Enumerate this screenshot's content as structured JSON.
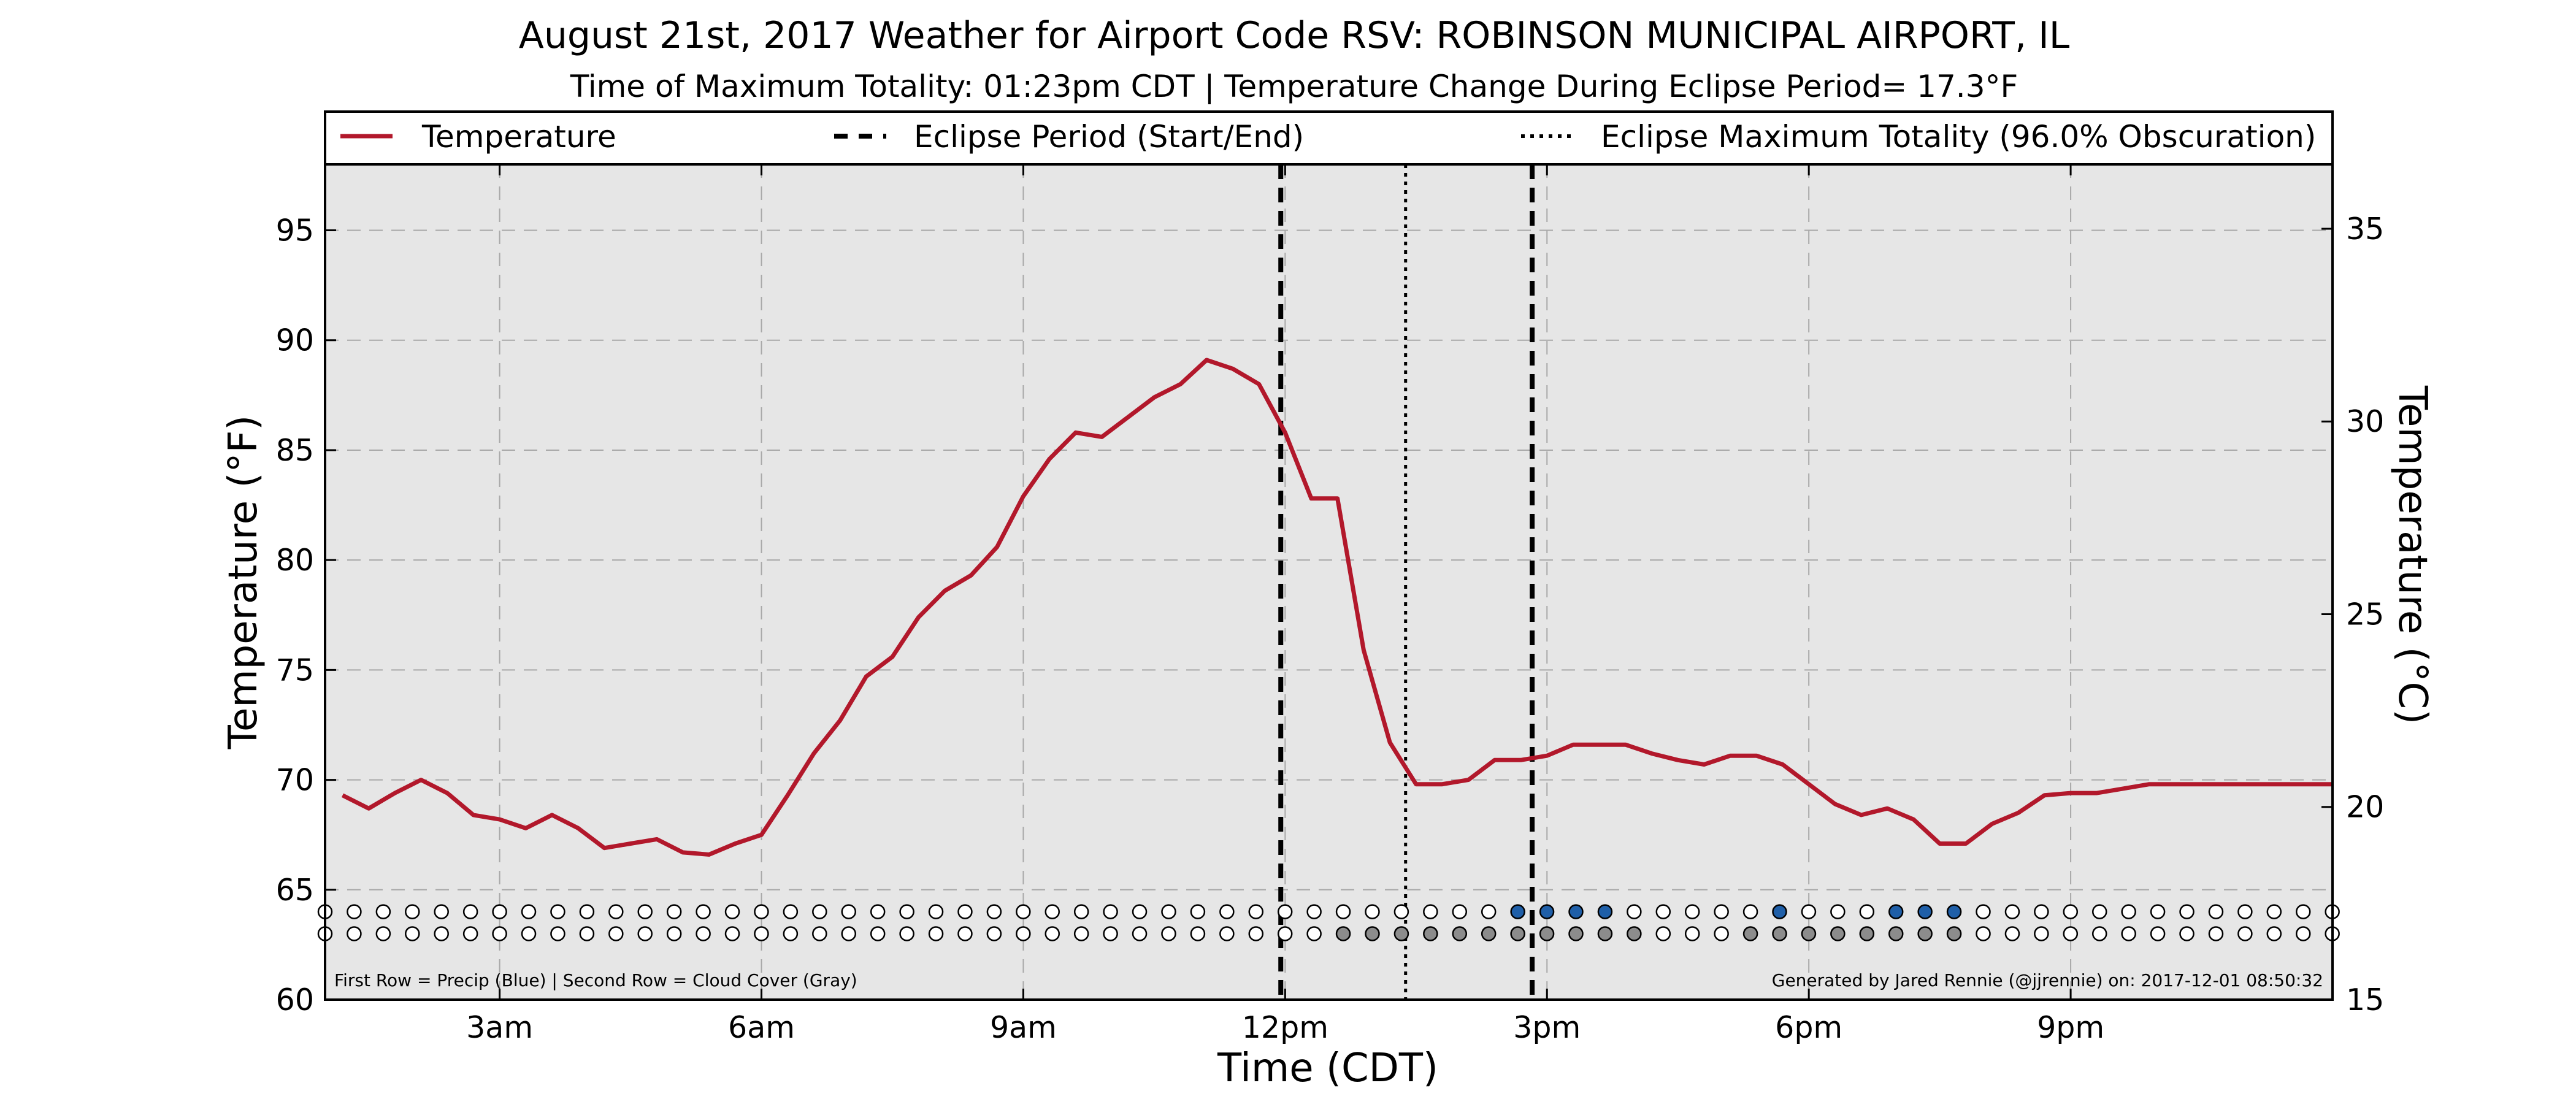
{
  "chart_data": {
    "type": "line",
    "title": "August 21st, 2017 Weather for Airport Code RSV: ROBINSON MUNICIPAL AIRPORT, IL",
    "subtitle": "Time of Maximum Totality: 01:23pm CDT | Temperature Change During Eclipse Period= 17.3°F",
    "xlabel": "Time (CDT)",
    "ylabel": "Temperature (°F)",
    "y2label": "Temperature (°C)",
    "xlim": [
      1.0,
      24.0
    ],
    "ylim": [
      60,
      98
    ],
    "y2lim": [
      15,
      36.67
    ],
    "x_ticks": [
      {
        "x": 3,
        "label": "3am"
      },
      {
        "x": 6,
        "label": "6am"
      },
      {
        "x": 9,
        "label": "9am"
      },
      {
        "x": 12,
        "label": "12pm"
      },
      {
        "x": 15,
        "label": "3pm"
      },
      {
        "x": 18,
        "label": "6pm"
      },
      {
        "x": 21,
        "label": "9pm"
      }
    ],
    "y_ticks": [
      60,
      65,
      70,
      75,
      80,
      85,
      90,
      95
    ],
    "y2_ticks": [
      15,
      20,
      25,
      30,
      35
    ],
    "grid": true,
    "legend": {
      "placement": "top",
      "entries": [
        {
          "label": "Temperature",
          "style": "solid"
        },
        {
          "label": "Eclipse Period (Start/End)",
          "style": "dashed"
        },
        {
          "label": "Eclipse Maximum Totality (96.0% Obscuration)",
          "style": "dotted"
        }
      ]
    },
    "series": [
      {
        "name": "Temperature",
        "color": "#b2182b",
        "x": [
          1.2,
          1.5,
          1.8,
          2.1,
          2.4,
          2.7,
          3.0,
          3.3,
          3.6,
          3.9,
          4.2,
          4.5,
          4.8,
          5.1,
          5.4,
          5.7,
          6.0,
          6.3,
          6.6,
          6.9,
          7.2,
          7.5,
          7.8,
          8.1,
          8.4,
          8.7,
          9.0,
          9.3,
          9.6,
          9.9,
          10.2,
          10.5,
          10.8,
          11.1,
          11.4,
          11.7,
          12.0,
          12.3,
          12.6,
          12.9,
          13.2,
          13.5,
          13.8,
          14.1,
          14.4,
          14.7,
          15.0,
          15.3,
          15.6,
          15.9,
          16.2,
          16.5,
          16.8,
          17.1,
          17.4,
          17.7,
          18.0,
          18.3,
          18.6,
          18.9,
          19.2,
          19.5,
          19.8,
          20.1,
          20.4,
          20.7,
          21.0,
          21.3,
          21.6,
          21.9,
          22.2,
          22.5,
          22.8,
          23.1,
          23.4,
          23.7,
          24.0
        ],
        "y": [
          69.3,
          68.7,
          69.4,
          70.0,
          69.4,
          68.4,
          68.2,
          67.8,
          68.4,
          67.8,
          66.9,
          67.1,
          67.3,
          66.7,
          66.6,
          67.1,
          67.5,
          69.3,
          71.2,
          72.7,
          74.7,
          75.6,
          77.4,
          78.6,
          79.3,
          80.6,
          82.9,
          84.6,
          85.8,
          85.6,
          86.5,
          87.4,
          88.0,
          89.1,
          88.7,
          88.0,
          85.8,
          82.8,
          82.8,
          75.9,
          71.7,
          69.8,
          69.8,
          70.0,
          70.9,
          70.9,
          71.1,
          71.6,
          71.6,
          71.6,
          71.2,
          70.9,
          70.7,
          71.1,
          71.1,
          70.7,
          69.8,
          68.9,
          68.4,
          68.7,
          68.2,
          67.1,
          67.1,
          68.0,
          68.5,
          69.3,
          69.4,
          69.4,
          69.6,
          69.8,
          69.8,
          69.8,
          69.8,
          69.8,
          69.8,
          69.8,
          69.8
        ]
      }
    ],
    "eclipse": {
      "start_x": 11.95,
      "max_x": 13.38,
      "end_x": 14.83
    },
    "indicator_rows": {
      "row1_y": 64.0,
      "row2_y": 63.0,
      "x_start": 1.0,
      "x_step": 0.3333,
      "count": 70,
      "precip_color": "#1f5fa8",
      "cloud_color": "#8c8c8c",
      "precip_indices": [
        41,
        42,
        43,
        44,
        50,
        54,
        55,
        56
      ],
      "cloud_indices": [
        35,
        36,
        37,
        38,
        39,
        40,
        41,
        42,
        43,
        44,
        45,
        49,
        50,
        51,
        52,
        53,
        54,
        55,
        56
      ]
    },
    "footnote_left": "First Row = Precip (Blue) | Second Row = Cloud Cover (Gray)",
    "footnote_right": "Generated by Jared Rennie (@jjrennie) on: 2017-12-01 08:50:32"
  }
}
